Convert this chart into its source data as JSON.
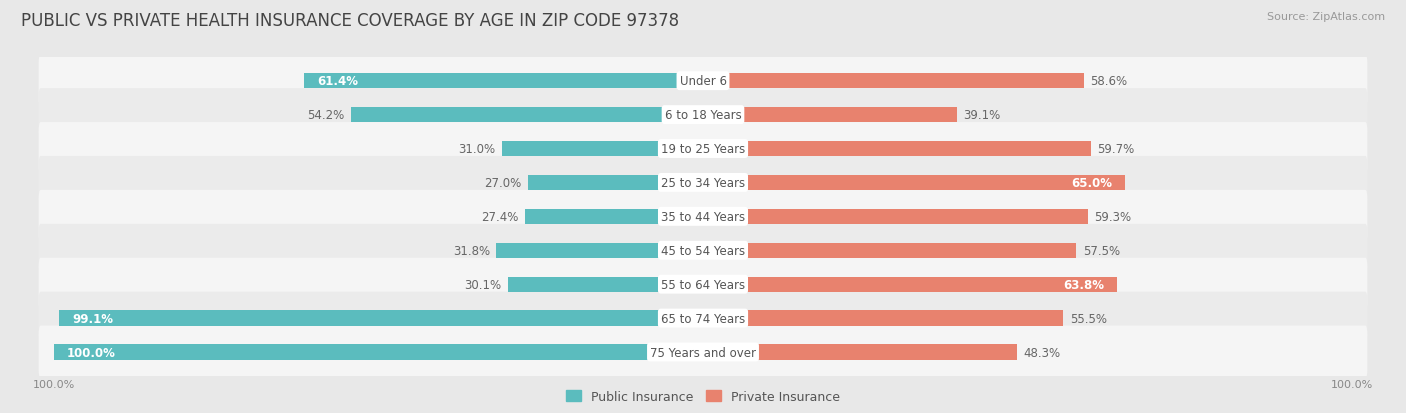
{
  "title": "PUBLIC VS PRIVATE HEALTH INSURANCE COVERAGE BY AGE IN ZIP CODE 97378",
  "source": "Source: ZipAtlas.com",
  "categories": [
    "Under 6",
    "6 to 18 Years",
    "19 to 25 Years",
    "25 to 34 Years",
    "35 to 44 Years",
    "45 to 54 Years",
    "55 to 64 Years",
    "65 to 74 Years",
    "75 Years and over"
  ],
  "public_values": [
    61.4,
    54.2,
    31.0,
    27.0,
    27.4,
    31.8,
    30.1,
    99.1,
    100.0
  ],
  "private_values": [
    58.6,
    39.1,
    59.7,
    65.0,
    59.3,
    57.5,
    63.8,
    55.5,
    48.3
  ],
  "public_color": "#5bbcbe",
  "private_color": "#e8826e",
  "bg_color": "#e8e8e8",
  "row_bg_even": "#f5f5f5",
  "row_bg_odd": "#ebebeb",
  "title_fontsize": 12,
  "source_fontsize": 8,
  "label_fontsize": 8.5,
  "cat_fontsize": 8.5,
  "bar_height": 0.45,
  "legend_labels": [
    "Public Insurance",
    "Private Insurance"
  ],
  "pub_white_threshold": 55,
  "priv_white_threshold": 63
}
